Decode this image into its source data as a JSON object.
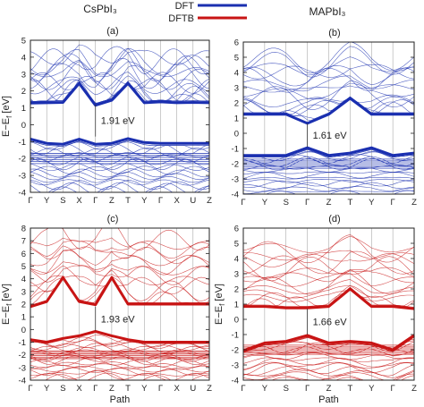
{
  "figure": {
    "col_left_title": "CsPbI₃",
    "col_right_title": "MAPbI₃",
    "legend": [
      {
        "label": "DFT",
        "color": "#1a2fb0"
      },
      {
        "label": "DFTB",
        "color": "#c81414"
      }
    ]
  },
  "chart_data": [
    {
      "type": "line",
      "panel_label": "(a)",
      "method": "DFT",
      "ylabel": "E−E_f [eV]",
      "xlabel": "",
      "ylim": [
        -4,
        5
      ],
      "yticks": [
        -4,
        -3,
        -2,
        -1,
        0,
        1,
        2,
        3,
        4,
        5
      ],
      "path_labels": [
        "Γ",
        "Y",
        "S",
        "X",
        "Γ",
        "Z",
        "T",
        "Y",
        "Γ",
        "X",
        "U",
        "Z"
      ],
      "series": [
        {
          "role": "conduction_band_minimum",
          "x": [
            0,
            1,
            2,
            3,
            4,
            5,
            6,
            7,
            8,
            9,
            10,
            11
          ],
          "values": [
            1.28,
            1.3,
            1.32,
            2.45,
            1.15,
            1.45,
            2.45,
            1.3,
            1.35,
            1.3,
            1.32,
            1.3
          ]
        },
        {
          "role": "valence_band_maximum",
          "x": [
            0,
            1,
            2,
            3,
            4,
            5,
            6,
            7,
            8,
            9,
            10,
            11
          ],
          "values": [
            -0.85,
            -1.1,
            -1.15,
            -0.85,
            -1.15,
            -1.1,
            -0.82,
            -1.05,
            -1.1,
            -1.1,
            -1.1,
            -1.1
          ]
        }
      ],
      "gap_annotation": {
        "text": "1.91 eV",
        "x": 4,
        "y0": -0.7,
        "y1": 1.2
      },
      "band_color": "#1a2fb0"
    },
    {
      "type": "line",
      "panel_label": "(b)",
      "method": "DFT",
      "ylabel": "",
      "xlabel": "",
      "ylim": [
        -4,
        6
      ],
      "yticks": [
        -4,
        -3,
        -2,
        -1,
        0,
        1,
        2,
        3,
        4,
        5,
        6
      ],
      "path_labels": [
        "Γ",
        "Y",
        "S",
        "Γ",
        "Z",
        "T",
        "Y",
        "Γ",
        "Z"
      ],
      "series": [
        {
          "role": "conduction_band_minimum",
          "x": [
            0,
            1,
            2,
            3,
            4,
            5,
            6,
            7,
            8
          ],
          "values": [
            1.25,
            1.25,
            1.25,
            0.65,
            1.25,
            2.3,
            1.25,
            1.25,
            1.25
          ]
        },
        {
          "role": "valence_band_maximum",
          "x": [
            0,
            1,
            2,
            3,
            4,
            5,
            6,
            7,
            8
          ],
          "values": [
            -1.45,
            -1.45,
            -1.45,
            -0.95,
            -1.45,
            -1.3,
            -0.95,
            -1.45,
            -1.3
          ]
        }
      ],
      "gap_annotation": {
        "text": "1.61 eV",
        "x": 3,
        "y0": -0.9,
        "y1": 0.65
      },
      "band_color": "#1a2fb0"
    },
    {
      "type": "line",
      "panel_label": "(c)",
      "method": "DFTB",
      "ylabel": "E−E_f [eV]",
      "xlabel": "Path",
      "ylim": [
        -4,
        8
      ],
      "yticks": [
        -4,
        -3,
        -2,
        -1,
        0,
        1,
        2,
        3,
        4,
        5,
        6,
        7,
        8
      ],
      "path_labels": [
        "Γ",
        "Y",
        "S",
        "X",
        "Γ",
        "Z",
        "T",
        "Y",
        "Γ",
        "X",
        "U",
        "Z"
      ],
      "series": [
        {
          "role": "conduction_band_minimum",
          "x": [
            0,
            1,
            2,
            3,
            4,
            5,
            6,
            7,
            8,
            9,
            10,
            11
          ],
          "values": [
            1.8,
            2.2,
            4.1,
            2.2,
            1.95,
            4.1,
            2.0,
            2.0,
            2.0,
            2.0,
            2.0,
            2.0
          ]
        },
        {
          "role": "valence_band_maximum",
          "x": [
            0,
            1,
            2,
            3,
            4,
            5,
            6,
            7,
            8,
            9,
            10,
            11
          ],
          "values": [
            -0.8,
            -1.0,
            -0.7,
            -0.5,
            -0.15,
            -0.5,
            -0.8,
            -1.0,
            -1.0,
            -1.0,
            -1.0,
            -1.0
          ]
        }
      ],
      "gap_annotation": {
        "text": "1.93 eV",
        "x": 4,
        "y0": -0.1,
        "y1": 1.8
      },
      "band_color": "#c81414"
    },
    {
      "type": "line",
      "panel_label": "(d)",
      "method": "DFTB",
      "ylabel": "E−E_f [eV]",
      "xlabel": "Path",
      "ylim": [
        -4,
        6
      ],
      "yticks": [
        -4,
        -3,
        -2,
        -1,
        0,
        1,
        2,
        3,
        4,
        5,
        6
      ],
      "path_labels": [
        "Γ",
        "Y",
        "S",
        "Γ",
        "Z",
        "T",
        "Y",
        "Γ",
        "Z"
      ],
      "series": [
        {
          "role": "conduction_band_minimum",
          "x": [
            0,
            1,
            2,
            3,
            4,
            5,
            6,
            7,
            8
          ],
          "values": [
            0.85,
            0.85,
            0.75,
            0.75,
            0.85,
            2.0,
            0.85,
            0.85,
            0.7
          ]
        },
        {
          "role": "valence_band_maximum",
          "x": [
            0,
            1,
            2,
            3,
            4,
            5,
            6,
            7,
            8
          ],
          "values": [
            -2.05,
            -1.55,
            -1.45,
            -1.05,
            -1.55,
            -1.45,
            -1.55,
            -2.0,
            -1.05
          ]
        }
      ],
      "gap_annotation": {
        "text": "1.66 eV",
        "x": 3,
        "y0": -1.0,
        "y1": 0.7
      },
      "band_color": "#c81414"
    }
  ]
}
